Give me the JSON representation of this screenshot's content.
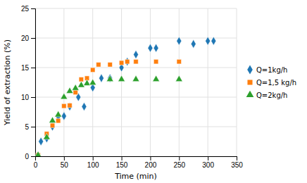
{
  "chart_data": {
    "type": "scatter",
    "xlabel": "Time (min)",
    "ylabel": "Yield of extraction (%)",
    "series": [
      {
        "name": "Q=1kg/h",
        "marker": "diamond",
        "x": [
          10,
          20,
          30,
          40,
          50,
          60,
          75,
          85,
          100,
          115,
          130,
          150,
          160,
          175,
          200,
          210,
          250,
          275,
          300,
          310
        ],
        "values": [
          2.5,
          3.0,
          5.0,
          6.7,
          6.8,
          8.4,
          10.0,
          8.4,
          11.6,
          13.2,
          13.2,
          15.0,
          16.0,
          17.2,
          18.3,
          18.3,
          19.5,
          19.0,
          19.5,
          19.5
        ]
      },
      {
        "name": "Q=1,5 kg/h",
        "marker": "square",
        "x": [
          5,
          20,
          30,
          40,
          50,
          60,
          70,
          80,
          90,
          100,
          110,
          130,
          150,
          160,
          175,
          210,
          250
        ],
        "values": [
          0.2,
          3.8,
          5.2,
          6.0,
          8.5,
          8.6,
          10.8,
          13.0,
          13.2,
          14.6,
          15.5,
          15.5,
          15.8,
          16.0,
          16.0,
          16.0,
          16.0
        ]
      },
      {
        "name": "Q=2kg/h",
        "marker": "triangle",
        "x": [
          5,
          20,
          30,
          40,
          50,
          60,
          70,
          80,
          90,
          100,
          130,
          150,
          175,
          210,
          250
        ],
        "values": [
          0.2,
          3.2,
          6.0,
          7.0,
          10.0,
          11.0,
          11.5,
          12.0,
          12.3,
          12.4,
          13.0,
          13.0,
          13.0,
          13.0,
          13.0
        ]
      }
    ],
    "xlim": [
      0,
      350
    ],
    "ylim": [
      0,
      25
    ],
    "xticks": [
      0,
      50,
      100,
      150,
      200,
      250,
      300,
      350
    ],
    "yticks": [
      0,
      5,
      10,
      15,
      20,
      25
    ],
    "grid": true,
    "legend": "right"
  }
}
